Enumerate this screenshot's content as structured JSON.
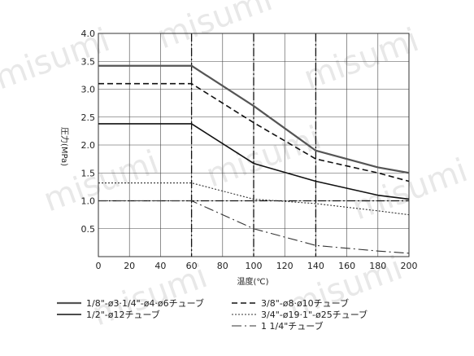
{
  "watermark": "misumi",
  "chart_data": {
    "type": "line",
    "xlabel": "温度(℃)",
    "ylabel": "圧力(MPa)",
    "xlim": [
      0,
      200
    ],
    "ylim": [
      0,
      4.0
    ],
    "x_ticks": [
      "0",
      "20",
      "40",
      "60",
      "80",
      "100",
      "120",
      "140",
      "160",
      "180",
      "200"
    ],
    "y_ticks": [
      "0",
      "0.5",
      "1.0",
      "1.5",
      "2.0",
      "2.5",
      "3.0",
      "3.5",
      "4.0"
    ],
    "grid": true,
    "emphasized_x_gridlines": [
      60,
      100,
      140
    ],
    "emphasized_y_gridline": 1.0,
    "legend_position": "bottom",
    "series": [
      {
        "name": "1/8\"-ø3·1/4\"-ø4·ø6チューブ",
        "style": "solid-thick",
        "color": "#555555",
        "x": [
          0,
          60,
          100,
          140,
          180,
          200
        ],
        "y": [
          3.42,
          3.42,
          2.7,
          1.9,
          1.6,
          1.5
        ]
      },
      {
        "name": "3/8\"-ø8·ø10チューブ",
        "style": "dashed",
        "color": "#111111",
        "x": [
          0,
          60,
          100,
          140,
          180,
          200
        ],
        "y": [
          3.1,
          3.1,
          2.4,
          1.75,
          1.5,
          1.35
        ]
      },
      {
        "name": "1/2\"-ø12チューブ",
        "style": "solid",
        "color": "#111111",
        "x": [
          0,
          60,
          100,
          140,
          180,
          200
        ],
        "y": [
          2.38,
          2.38,
          1.67,
          1.35,
          1.1,
          1.03
        ]
      },
      {
        "name": "3/4\"-ø19·1\"-ø25チューブ",
        "style": "dotted",
        "color": "#333333",
        "x": [
          0,
          60,
          100,
          140,
          180,
          200
        ],
        "y": [
          1.32,
          1.32,
          1.03,
          0.95,
          0.82,
          0.75
        ]
      },
      {
        "name": "1 1/4\"チューブ",
        "style": "dash-dot",
        "color": "#333333",
        "x": [
          0,
          60,
          100,
          140,
          180,
          200
        ],
        "y": [
          1.0,
          1.0,
          0.5,
          0.2,
          0.1,
          0.06
        ]
      }
    ]
  }
}
